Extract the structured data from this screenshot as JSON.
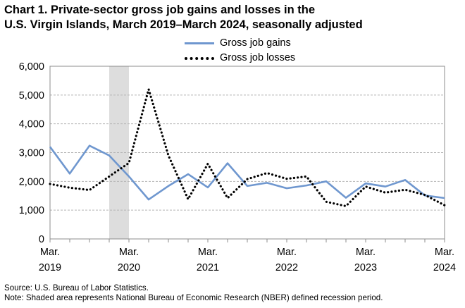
{
  "title_line1": "Chart 1. Private-sector gross job gains and losses in the",
  "title_line2": "U.S. Virgin Islands, March 2019–March 2024, seasonally adjusted",
  "source": "Source: U.S. Bureau of Labor Statistics.",
  "note": "Note: Shaded area represents National Bureau of Economic Research (NBER) defined recession period.",
  "chart_data": {
    "type": "line",
    "title": "Chart 1. Private-sector gross job gains and losses in the U.S. Virgin Islands, March 2019–March 2024, seasonally adjusted",
    "xlabel": "",
    "ylabel": "",
    "x": [
      "Mar 2019",
      "Jun 2019",
      "Sep 2019",
      "Dec 2019",
      "Mar 2020",
      "Jun 2020",
      "Sep 2020",
      "Dec 2020",
      "Mar 2021",
      "Jun 2021",
      "Sep 2021",
      "Dec 2021",
      "Mar 2022",
      "Jun 2022",
      "Sep 2022",
      "Dec 2022",
      "Mar 2023",
      "Jun 2023",
      "Sep 2023",
      "Dec 2023",
      "Mar 2024"
    ],
    "x_tick_labels": [
      {
        "month": "Mar.",
        "year": "2019"
      },
      {
        "month": "Mar.",
        "year": "2020"
      },
      {
        "month": "Mar.",
        "year": "2021"
      },
      {
        "month": "Mar.",
        "year": "2022"
      },
      {
        "month": "Mar.",
        "year": "2023"
      },
      {
        "month": "Mar.",
        "year": "2024"
      }
    ],
    "y_ticks": [
      "0",
      "1,000",
      "2,000",
      "3,000",
      "4,000",
      "5,000",
      "6,000"
    ],
    "ylim": [
      0,
      6000
    ],
    "grid": "horizontal dashed",
    "legend_position": "top-center",
    "recession_shading": {
      "from": "Dec 2019",
      "to": "Mar 2020",
      "color": "#dddddd"
    },
    "series": [
      {
        "name": "Gross job gains",
        "color": "#6f97cf",
        "style": "solid",
        "values": [
          3200,
          2270,
          3240,
          2900,
          2170,
          1370,
          1840,
          2250,
          1790,
          2630,
          1840,
          1950,
          1760,
          1860,
          2000,
          1430,
          1930,
          1820,
          2050,
          1510,
          1420
        ]
      },
      {
        "name": "Gross job losses",
        "color": "#000000",
        "style": "dotted",
        "values": [
          1910,
          1780,
          1700,
          2170,
          2640,
          5200,
          2900,
          1380,
          2610,
          1420,
          2080,
          2290,
          2090,
          2170,
          1290,
          1140,
          1820,
          1610,
          1710,
          1530,
          1170
        ]
      }
    ]
  }
}
